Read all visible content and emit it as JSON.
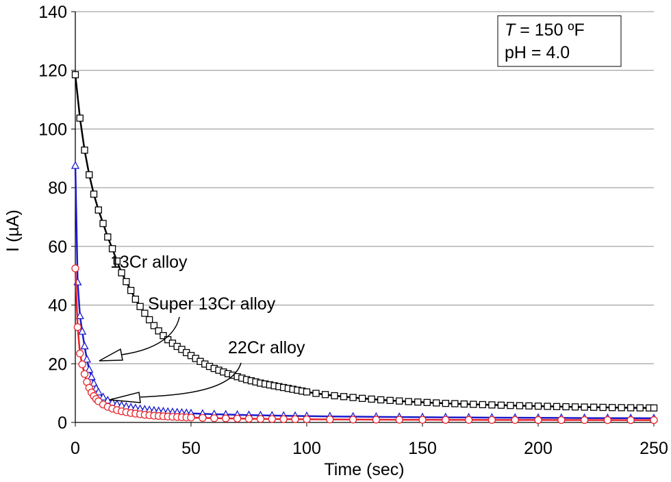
{
  "chart_data": {
    "type": "scatter",
    "xlabel": "Time (sec)",
    "ylabel": "I (µA)",
    "xlim": [
      0,
      250
    ],
    "ylim": [
      0,
      140
    ],
    "xticks": [
      "0",
      "50",
      "100",
      "150",
      "200",
      "250"
    ],
    "yticks": [
      "0",
      "20",
      "40",
      "60",
      "80",
      "100",
      "120",
      "140"
    ],
    "grid": "horizontal",
    "info_box": {
      "line1_italic": "T",
      "line1_rest": " = 150 ºF",
      "line2": "pH = 4.0"
    },
    "series": [
      {
        "name": "13Cr alloy",
        "color": "#000000",
        "marker": "square",
        "x": [
          0,
          2,
          4,
          6,
          8,
          10,
          12,
          14,
          16,
          18,
          20,
          22,
          24,
          26,
          28,
          30,
          32,
          34,
          36,
          38,
          40,
          42,
          44,
          46,
          48,
          50,
          52,
          54,
          56,
          58,
          60,
          62,
          64,
          66,
          68,
          70,
          72,
          74,
          76,
          78,
          80,
          82,
          84,
          86,
          88,
          90,
          92,
          94,
          96,
          98,
          100,
          104,
          108,
          112,
          116,
          120,
          124,
          128,
          132,
          136,
          140,
          144,
          148,
          152,
          156,
          160,
          164,
          168,
          172,
          176,
          180,
          184,
          188,
          192,
          196,
          200,
          204,
          208,
          212,
          216,
          220,
          224,
          228,
          232,
          236,
          240,
          244,
          248,
          250
        ],
        "y": [
          118.5,
          103.7,
          92.8,
          84.4,
          77.8,
          72.4,
          67.8,
          63.2,
          59.2,
          55.0,
          51.0,
          48.0,
          45.0,
          42.0,
          39.5,
          37.2,
          35.0,
          33.0,
          31.2,
          29.6,
          28.2,
          27.0,
          25.9,
          24.9,
          23.8,
          22.8,
          21.8,
          20.8,
          19.9,
          19.1,
          18.4,
          17.8,
          17.2,
          16.6,
          16.1,
          15.6,
          15.1,
          14.6,
          14.2,
          13.8,
          13.4,
          13.1,
          12.8,
          12.5,
          12.2,
          11.9,
          11.6,
          11.3,
          11.0,
          10.7,
          10.4,
          9.9,
          9.5,
          9.1,
          8.8,
          8.5,
          8.2,
          7.95,
          7.7,
          7.5,
          7.3,
          7.1,
          6.95,
          6.8,
          6.65,
          6.5,
          6.4,
          6.28,
          6.17,
          6.07,
          5.97,
          5.88,
          5.79,
          5.71,
          5.63,
          5.55,
          5.48,
          5.41,
          5.35,
          5.29,
          5.23,
          5.18,
          5.13,
          5.08,
          5.04,
          5.0,
          4.97,
          4.94,
          4.93
        ]
      },
      {
        "name": "Super 13Cr alloy",
        "color": "#1a1acc",
        "marker": "triangle",
        "x": [
          0,
          1,
          2,
          3,
          4,
          5,
          6,
          7,
          8,
          9,
          10,
          12,
          14,
          16,
          18,
          20,
          22,
          24,
          26,
          28,
          30,
          32,
          34,
          36,
          38,
          40,
          42,
          44,
          46,
          48,
          50,
          55,
          60,
          65,
          70,
          75,
          80,
          85,
          90,
          95,
          100,
          110,
          120,
          130,
          140,
          150,
          160,
          170,
          180,
          190,
          200,
          210,
          220,
          230,
          240,
          250
        ],
        "y": [
          87.5,
          47.8,
          36.3,
          31.0,
          26.0,
          21.5,
          18.0,
          15.5,
          13.3,
          11.6,
          10.3,
          8.6,
          7.5,
          6.8,
          6.2,
          5.8,
          5.4,
          5.1,
          4.85,
          4.6,
          4.4,
          4.2,
          4.05,
          3.9,
          3.75,
          3.6,
          3.5,
          3.4,
          3.3,
          3.2,
          3.1,
          2.95,
          2.8,
          2.7,
          2.6,
          2.5,
          2.42,
          2.35,
          2.28,
          2.22,
          2.16,
          2.06,
          1.98,
          1.9,
          1.84,
          1.78,
          1.73,
          1.68,
          1.64,
          1.6,
          1.56,
          1.53,
          1.5,
          1.47,
          1.44,
          1.42
        ]
      },
      {
        "name": "22Cr alloy",
        "color": "#e8232a",
        "marker": "circle",
        "x": [
          0,
          1,
          2,
          3,
          4,
          5,
          6,
          7,
          8,
          9,
          10,
          12,
          14,
          16,
          18,
          20,
          22,
          24,
          26,
          28,
          30,
          32,
          34,
          36,
          38,
          40,
          42,
          44,
          46,
          48,
          50,
          55,
          60,
          65,
          70,
          75,
          80,
          85,
          90,
          95,
          100,
          110,
          120,
          130,
          140,
          150,
          160,
          170,
          180,
          190,
          200,
          210,
          220,
          230,
          240,
          250
        ],
        "y": [
          52.5,
          32.5,
          23.5,
          19.8,
          16.5,
          13.8,
          11.8,
          10.2,
          9.0,
          8.0,
          7.2,
          6.1,
          5.3,
          4.7,
          4.2,
          3.8,
          3.5,
          3.2,
          3.0,
          2.8,
          2.6,
          2.45,
          2.3,
          2.2,
          2.1,
          2.0,
          1.92,
          1.85,
          1.78,
          1.72,
          1.66,
          1.55,
          1.46,
          1.38,
          1.32,
          1.26,
          1.21,
          1.17,
          1.13,
          1.1,
          1.07,
          1.02,
          0.98,
          0.95,
          0.92,
          0.9,
          0.88,
          0.86,
          0.85,
          0.84,
          0.83,
          0.82,
          0.81,
          0.8,
          0.8,
          0.8
        ]
      }
    ],
    "annotations": [
      {
        "text": "13Cr alloy"
      },
      {
        "text": "Super 13Cr alloy"
      },
      {
        "text": "22Cr alloy"
      }
    ]
  }
}
